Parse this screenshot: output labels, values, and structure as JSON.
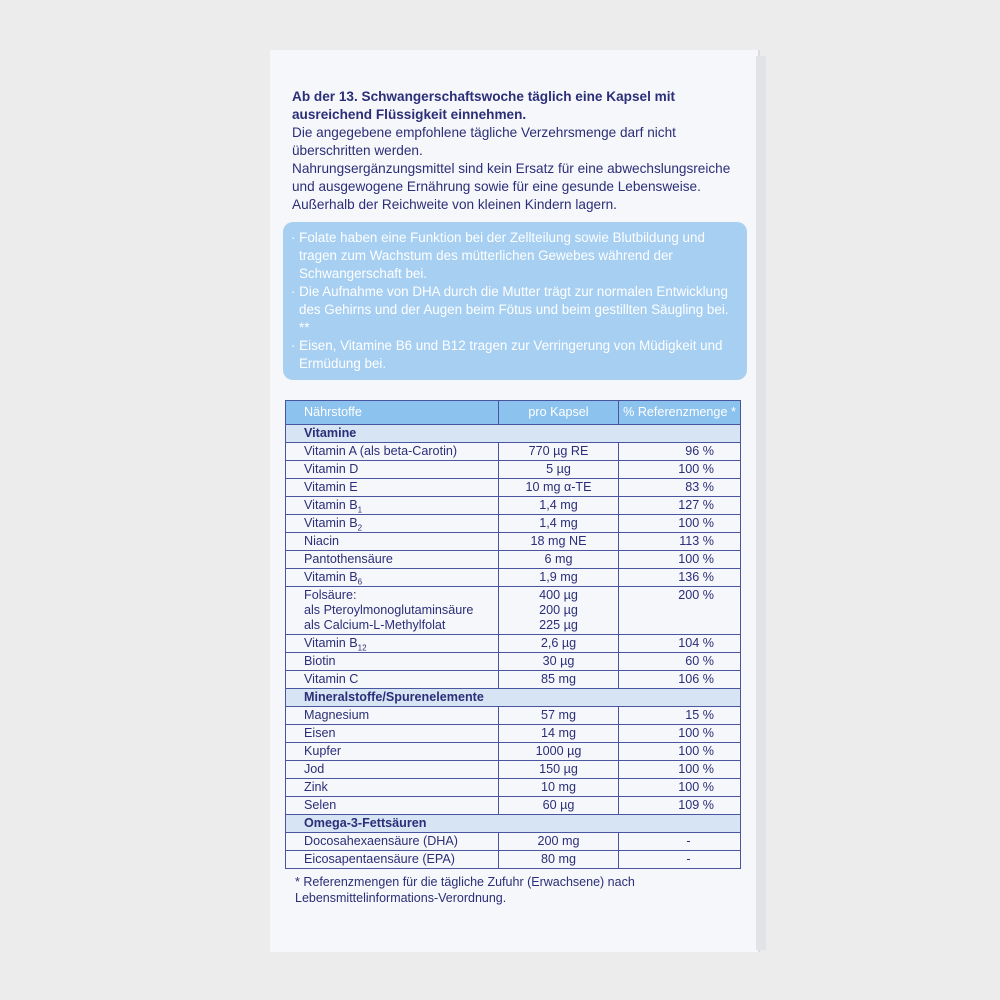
{
  "intro": {
    "bold": "Ab der 13. Schwangerschaftswoche täglich eine Kapsel mit ausreichend Flüssigkeit einnehmen.",
    "lines": [
      "Die angegebene empfohlene tägliche Verzehrsmenge darf nicht überschritten werden.",
      "Nahrungsergänzungsmittel sind kein Ersatz für eine abwechslungsreiche und ausgewogene Ernährung sowie für eine gesunde Lebensweise.",
      "Außerhalb der Reichweite von kleinen Kindern lagern."
    ]
  },
  "panel": [
    "· Folate haben eine Funktion bei der Zellteilung sowie Blutbildung und tragen zum Wachstum des mütterlichen Gewebes während der Schwangerschaft bei.",
    "· Die Aufnahme von DHA durch die Mutter trägt zur normalen Entwicklung des Gehirns und der Augen beim Fötus und beim gestillten Säugling bei. **",
    "· Eisen, Vitamine B6 und B12 tragen zur Verringerung von Müdigkeit und Ermüdung bei."
  ],
  "table": {
    "headers": [
      "Nährstoffe",
      "pro Kapsel",
      "% Referenzmenge *"
    ],
    "sections": [
      {
        "title": "Vitamine",
        "rows": [
          {
            "name": "Vitamin A (als beta-Carotin)",
            "amount": "770 µg RE",
            "ref": "96 %"
          },
          {
            "name": "Vitamin D",
            "amount": "5 µg",
            "ref": "100 %"
          },
          {
            "name": "Vitamin E",
            "amount": "10 mg α-TE",
            "ref": "83 %"
          },
          {
            "name": "Vitamin B",
            "sub": "1",
            "amount": "1,4 mg",
            "ref": "127 %"
          },
          {
            "name": "Vitamin B",
            "sub": "2",
            "amount": "1,4 mg",
            "ref": "100 %"
          },
          {
            "name": "Niacin",
            "amount": "18 mg NE",
            "ref": "113 %"
          },
          {
            "name": "Pantothensäure",
            "amount": "6 mg",
            "ref": "100 %"
          },
          {
            "name": "Vitamin B",
            "sub": "6",
            "amount": "1,9 mg",
            "ref": "136 %"
          },
          {
            "name": "Folsäure:\nals Pteroylmonoglutaminsäure\nals Calcium-L-Methylfolat",
            "amount": "400 µg\n200 µg\n225 µg",
            "ref": "200 %"
          },
          {
            "name": "Vitamin B",
            "sub": "12",
            "amount": "2,6 µg",
            "ref": "104 %"
          },
          {
            "name": "Biotin",
            "amount": "30 µg",
            "ref": "60 %"
          },
          {
            "name": "Vitamin C",
            "amount": "85 mg",
            "ref": "106 %"
          }
        ]
      },
      {
        "title": "Mineralstoffe/Spurenelemente",
        "rows": [
          {
            "name": "Magnesium",
            "amount": "57 mg",
            "ref": "15 %"
          },
          {
            "name": "Eisen",
            "amount": "14 mg",
            "ref": "100 %"
          },
          {
            "name": "Kupfer",
            "amount": "1000 µg",
            "ref": "100 %"
          },
          {
            "name": "Jod",
            "amount": "150 µg",
            "ref": "100 %"
          },
          {
            "name": "Zink",
            "amount": "10 mg",
            "ref": "100 %"
          },
          {
            "name": "Selen",
            "amount": "60 µg",
            "ref": "109 %"
          }
        ]
      },
      {
        "title": "Omega-3-Fettsäuren",
        "rows": [
          {
            "name": "Docosahexaensäure (DHA)",
            "amount": "200 mg",
            "ref": "-"
          },
          {
            "name": "Eicosapentaensäure (EPA)",
            "amount": "80 mg",
            "ref": "-"
          }
        ]
      }
    ]
  },
  "footnote": "* Referenzmengen für die tägliche Zufuhr (Erwachsene) nach Lebensmittelinformations-Verordnung."
}
